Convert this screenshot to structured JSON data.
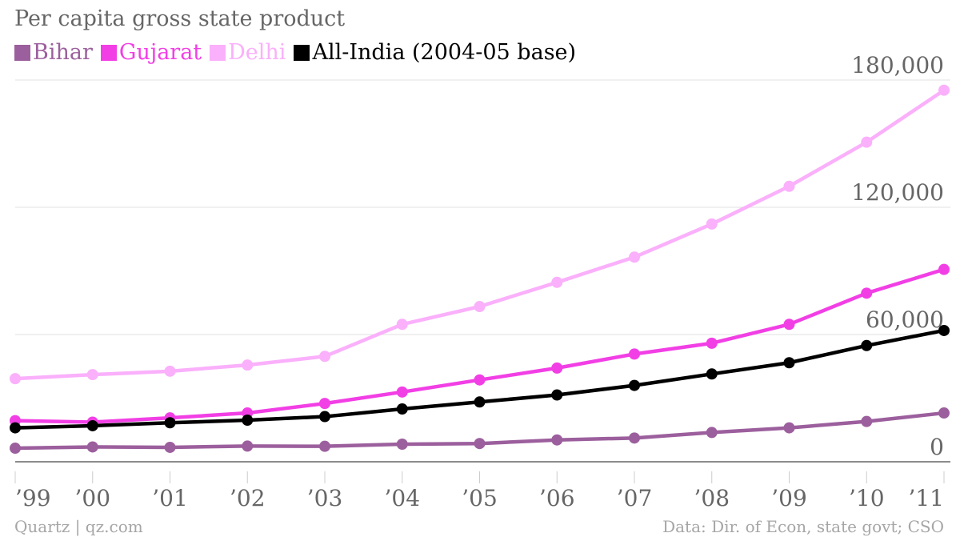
{
  "chart_data": {
    "type": "line",
    "title": "Per capita gross state product",
    "xlabel": "",
    "ylabel": "",
    "categories": [
      "’99",
      "’00",
      "’01",
      "’02",
      "’03",
      "’04",
      "’05",
      "’06",
      "’07",
      "’08",
      "’09",
      "’10",
      "’11"
    ],
    "ylim": [
      0,
      180000
    ],
    "yticks": [
      {
        "value": 0,
        "label": "0"
      },
      {
        "value": 60000,
        "label": "60,000"
      },
      {
        "value": 120000,
        "label": "120,000"
      },
      {
        "value": 180000,
        "label": "180,000"
      }
    ],
    "grid": true,
    "legend_position": "top-left",
    "series": [
      {
        "name": "Bihar",
        "color": "#9c5f9d",
        "values": [
          6400,
          7000,
          6800,
          7400,
          7300,
          8300,
          8600,
          10300,
          11200,
          13800,
          16000,
          19000,
          23000
        ]
      },
      {
        "name": "Gujarat",
        "color": "#f23fe5",
        "values": [
          19400,
          18700,
          20700,
          23000,
          27500,
          32900,
          38600,
          44200,
          50800,
          55900,
          64800,
          79500,
          90700
        ]
      },
      {
        "name": "Delhi",
        "color": "#fab0fb",
        "values": [
          39200,
          41100,
          42700,
          45600,
          49700,
          64800,
          73200,
          84600,
          96500,
          112100,
          129900,
          150700,
          175200
        ]
      },
      {
        "name": "All-India (2004-05 base)",
        "color": "#000000",
        "values": [
          16000,
          17000,
          18400,
          19600,
          21300,
          24900,
          28200,
          31500,
          36000,
          41400,
          46700,
          54800,
          61900
        ]
      }
    ]
  },
  "footer": {
    "source_left": "Quartz | qz.com",
    "source_right": "Data: Dir. of Econ, state govt; CSO"
  }
}
